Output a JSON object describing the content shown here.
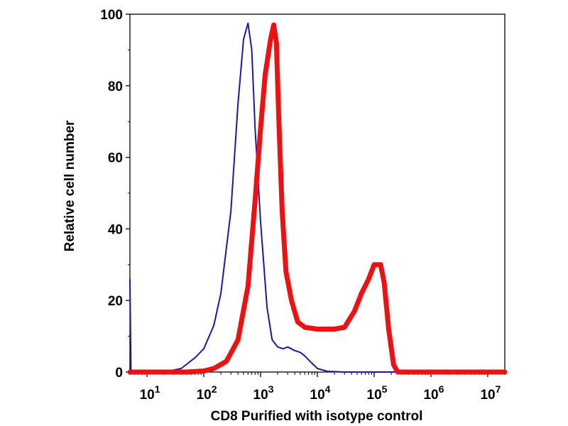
{
  "chart_data": {
    "type": "line",
    "title": "",
    "xlabel": "CD8 Purified with isotype control",
    "ylabel": "Relative cell number",
    "x_scale": "log",
    "xlim": [
      5,
      20000000
    ],
    "ylim": [
      0,
      100
    ],
    "y_ticks": [
      {
        "value": 0,
        "label": "0"
      },
      {
        "value": 20,
        "label": "20"
      },
      {
        "value": 40,
        "label": "40"
      },
      {
        "value": 60,
        "label": "60"
      },
      {
        "value": 80,
        "label": "80"
      },
      {
        "value": 100,
        "label": "100"
      }
    ],
    "x_ticks": [
      {
        "value": 10,
        "base": "10",
        "exp": "1"
      },
      {
        "value": 100,
        "base": "10",
        "exp": "2"
      },
      {
        "value": 1000,
        "base": "10",
        "exp": "3"
      },
      {
        "value": 10000,
        "base": "10",
        "exp": "4"
      },
      {
        "value": 100000,
        "base": "10",
        "exp": "5"
      },
      {
        "value": 1000000,
        "base": "10",
        "exp": "6"
      },
      {
        "value": 10000000,
        "base": "10",
        "exp": "7"
      }
    ],
    "grid": false,
    "legend": "none",
    "series": [
      {
        "color": "#1a1aa0",
        "line_width": 2,
        "points": [
          [
            5,
            26
          ],
          [
            5.2,
            0.5
          ],
          [
            6,
            0.2
          ],
          [
            10,
            0
          ],
          [
            20,
            0
          ],
          [
            40,
            1
          ],
          [
            70,
            4
          ],
          [
            100,
            6.5
          ],
          [
            150,
            13
          ],
          [
            200,
            22
          ],
          [
            300,
            45
          ],
          [
            400,
            75
          ],
          [
            500,
            93
          ],
          [
            600,
            97.5
          ],
          [
            700,
            90
          ],
          [
            800,
            68
          ],
          [
            1000,
            42
          ],
          [
            1300,
            18
          ],
          [
            1600,
            9
          ],
          [
            2000,
            7
          ],
          [
            2500,
            6.5
          ],
          [
            3000,
            7
          ],
          [
            4000,
            6
          ],
          [
            5000,
            5.5
          ],
          [
            6000,
            4.5
          ],
          [
            8000,
            2.5
          ],
          [
            10000,
            1
          ],
          [
            15000,
            0.2
          ],
          [
            30000,
            0
          ],
          [
            20000000,
            0
          ]
        ]
      },
      {
        "color": "#ee1111",
        "line_width": 7,
        "points": [
          [
            5,
            0
          ],
          [
            50,
            0
          ],
          [
            100,
            0.3
          ],
          [
            150,
            1
          ],
          [
            250,
            3
          ],
          [
            400,
            9
          ],
          [
            600,
            24
          ],
          [
            800,
            48
          ],
          [
            1000,
            68
          ],
          [
            1200,
            83
          ],
          [
            1500,
            93
          ],
          [
            1700,
            97
          ],
          [
            1900,
            92
          ],
          [
            2100,
            70
          ],
          [
            2400,
            45
          ],
          [
            2800,
            28
          ],
          [
            3500,
            20
          ],
          [
            4500,
            14
          ],
          [
            6000,
            12.5
          ],
          [
            10000,
            12
          ],
          [
            20000,
            12
          ],
          [
            30000,
            12.5
          ],
          [
            45000,
            17
          ],
          [
            60000,
            22
          ],
          [
            80000,
            26
          ],
          [
            100000,
            30
          ],
          [
            130000,
            30
          ],
          [
            150000,
            25
          ],
          [
            180000,
            12
          ],
          [
            220000,
            2
          ],
          [
            260000,
            0
          ],
          [
            20000000,
            0
          ]
        ]
      }
    ]
  }
}
